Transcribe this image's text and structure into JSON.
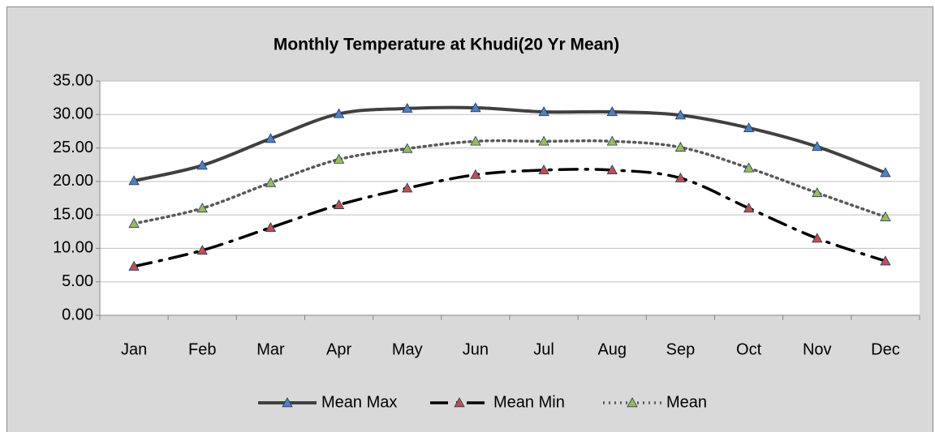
{
  "chart_data": {
    "type": "line",
    "title": "Monthly Temperature at Khudi(20 Yr Mean)",
    "categories": [
      "Jan",
      "Feb",
      "Mar",
      "Apr",
      "May",
      "Jun",
      "Jul",
      "Aug",
      "Sep",
      "Oct",
      "Nov",
      "Dec"
    ],
    "series": [
      {
        "name": "Mean Max",
        "color": "#404040",
        "marker_color": "#4f81bd",
        "style": "solid",
        "values": [
          20.1,
          22.4,
          26.4,
          30.1,
          30.9,
          31.0,
          30.4,
          30.4,
          29.9,
          28.0,
          25.2,
          21.3
        ]
      },
      {
        "name": "Mean Min",
        "color": "#000000",
        "marker_color": "#c0504d",
        "style": "dash-dot",
        "values": [
          7.3,
          9.7,
          13.1,
          16.5,
          19.0,
          21.0,
          21.7,
          21.7,
          20.5,
          16.0,
          11.5,
          8.1
        ]
      },
      {
        "name": "Mean",
        "color": "#595959",
        "marker_color": "#9bbb59",
        "style": "dotted",
        "values": [
          13.7,
          16.0,
          19.8,
          23.3,
          24.9,
          26.0,
          26.0,
          26.0,
          25.1,
          22.0,
          18.3,
          14.7
        ]
      }
    ],
    "ylim": [
      0,
      35
    ],
    "yticks": [
      {
        "value": 0,
        "label": "0.00"
      },
      {
        "value": 5,
        "label": "5.00"
      },
      {
        "value": 10,
        "label": "10.00"
      },
      {
        "value": 15,
        "label": "15.00"
      },
      {
        "value": 20,
        "label": "20.00"
      },
      {
        "value": 25,
        "label": "25.00"
      },
      {
        "value": 30,
        "label": "30.00"
      },
      {
        "value": 35,
        "label": "35.00"
      }
    ],
    "grid": true,
    "legend": "bottom"
  }
}
